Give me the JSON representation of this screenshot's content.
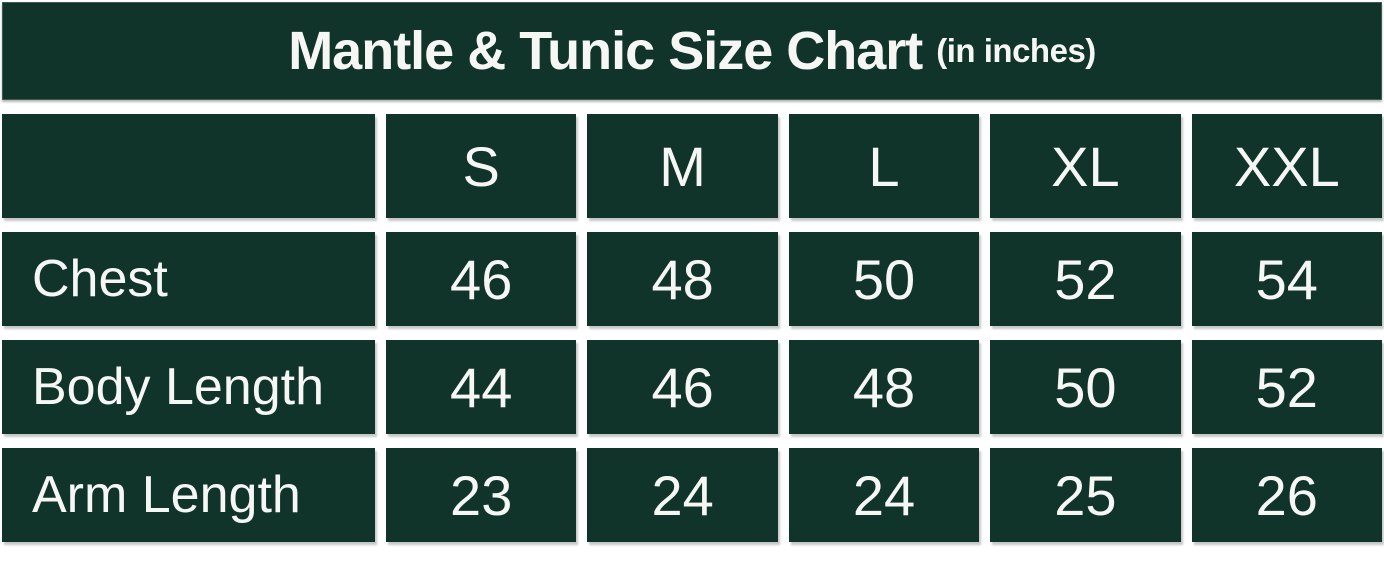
{
  "header": {
    "title": "Mantle & Tunic Size Chart",
    "unit_note": "(in inches)"
  },
  "chart_data": {
    "type": "table",
    "title": "Mantle & Tunic Size Chart",
    "unit": "inches",
    "columns": [
      "S",
      "M",
      "L",
      "XL",
      "XXL"
    ],
    "rows": [
      {
        "label": "Chest",
        "values": [
          "46",
          "48",
          "50",
          "52",
          "54"
        ]
      },
      {
        "label": "Body Length",
        "values": [
          "44",
          "46",
          "48",
          "50",
          "52"
        ]
      },
      {
        "label": "Arm Length",
        "values": [
          "23",
          "24",
          "24",
          "25",
          "26"
        ]
      }
    ]
  },
  "colors": {
    "cell_bg": "#10342a",
    "gap": "#ffffff",
    "text": "#f6f7f4"
  }
}
